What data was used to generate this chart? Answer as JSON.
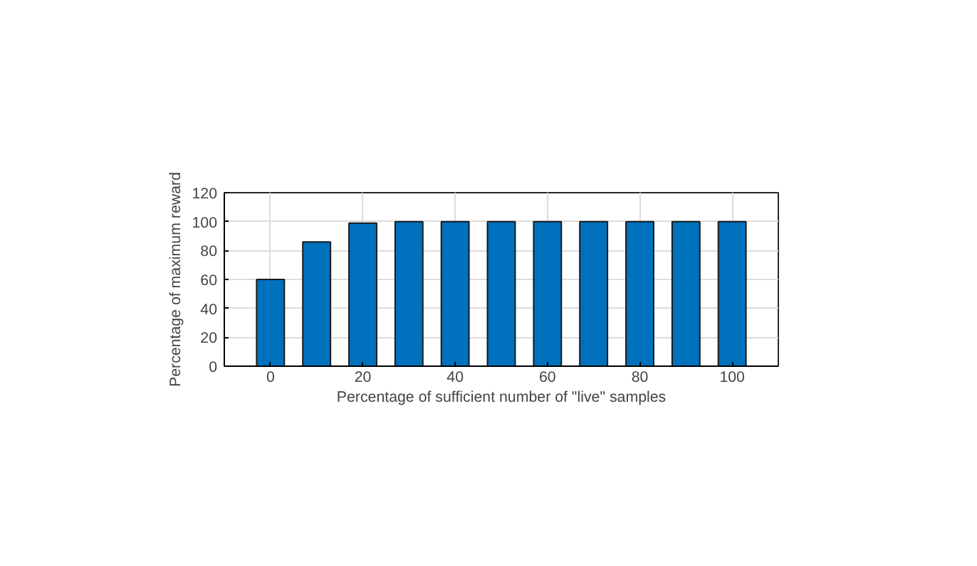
{
  "chart_data": {
    "type": "bar",
    "xlabel": "Percentage of sufficient number of \"live\" samples",
    "ylabel": "Percentage of maximum reward",
    "x": [
      0,
      10,
      20,
      30,
      40,
      50,
      60,
      70,
      80,
      90,
      100
    ],
    "values": [
      60,
      86,
      99,
      100,
      100,
      100,
      100,
      100,
      100,
      100,
      100
    ],
    "color": "#0072bd",
    "xlim": [
      -10,
      110
    ],
    "ylim": [
      0,
      120
    ],
    "xticks": [
      0,
      20,
      40,
      60,
      80,
      100
    ],
    "yticks": [
      0,
      20,
      40,
      60,
      80,
      100,
      120
    ],
    "grid": true
  }
}
